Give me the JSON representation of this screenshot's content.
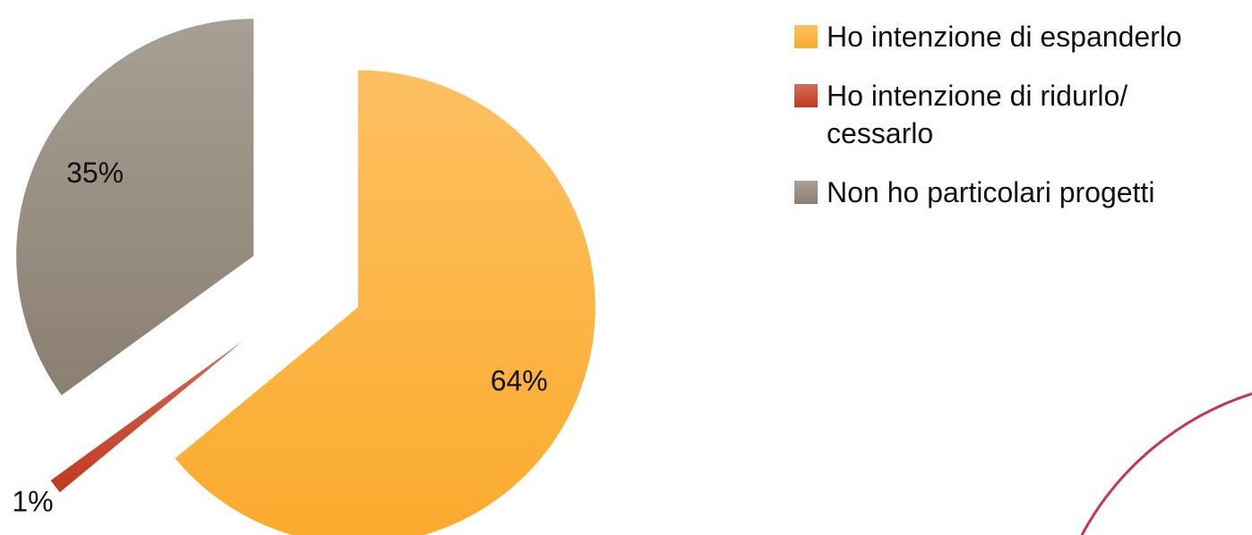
{
  "chart_data": {
    "type": "pie",
    "categories": [
      "Ho intenzione di espanderlo",
      "Ho intenzione di ridurlo/ cessarlo",
      "Non ho particolari progetti"
    ],
    "values": [
      64,
      1,
      35
    ],
    "value_labels": [
      "64%",
      "1%",
      "35%"
    ],
    "colors": [
      "#fbab2c",
      "#c2391f",
      "#8a7f71"
    ],
    "legend": "right"
  }
}
